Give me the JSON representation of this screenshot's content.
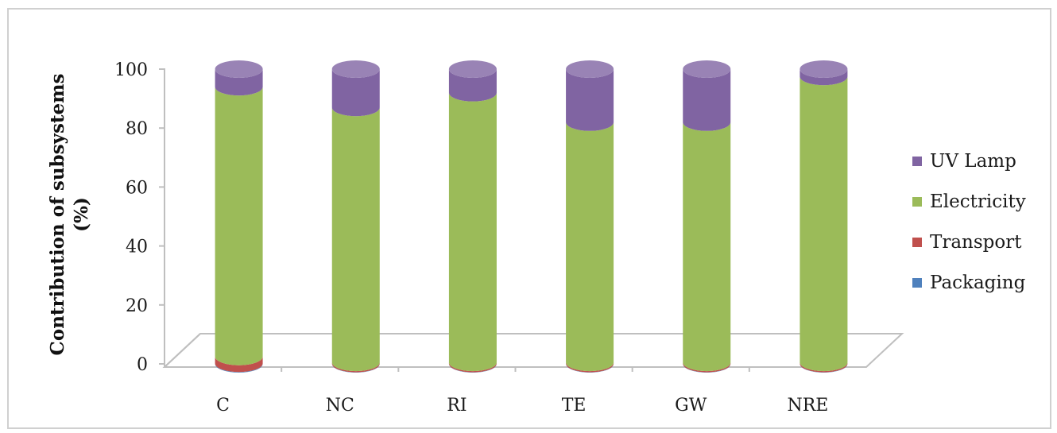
{
  "chart_data": {
    "type": "bar",
    "stacked": true,
    "style": "3d-cylinder",
    "ylabel_line1": "Contribution of subsystems",
    "ylabel_line2": "(%)",
    "ylim": [
      0,
      100
    ],
    "yticks": [
      "0",
      "20",
      "40",
      "60",
      "80",
      "100"
    ],
    "categories": [
      "C",
      "NC",
      "RI",
      "TE",
      "GW",
      "NRE"
    ],
    "series": [
      {
        "name": "Packaging",
        "color": "#4f81bd",
        "values": [
          0.2,
          0.1,
          0.1,
          0.1,
          0.1,
          0.1
        ]
      },
      {
        "name": "Transport",
        "color": "#c0504d",
        "values": [
          2.3,
          0.4,
          0.4,
          0.4,
          0.4,
          0.4
        ]
      },
      {
        "name": "Electricity",
        "color": "#9bbb59",
        "values": [
          91.5,
          86.5,
          91.5,
          81.5,
          81.5,
          97.0
        ]
      },
      {
        "name": "UV Lamp",
        "color": "#8064a2",
        "values": [
          6.0,
          13.0,
          8.0,
          18.0,
          18.0,
          2.5
        ]
      }
    ],
    "legend": [
      "UV Lamp",
      "Electricity",
      "Transport",
      "Packaging"
    ],
    "legend_position": "right",
    "grid": false
  }
}
